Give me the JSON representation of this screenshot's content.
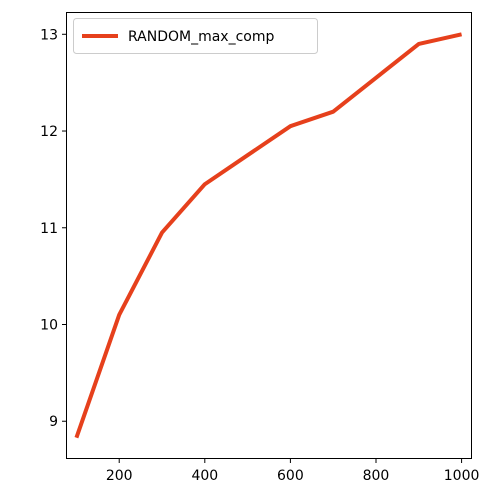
{
  "chart_data": {
    "type": "line",
    "title": "",
    "xlabel": "",
    "ylabel": "",
    "xlim": [
      78,
      1022
    ],
    "ylim": [
      8.62,
      13.22
    ],
    "x_ticks": [
      200,
      400,
      600,
      800,
      1000
    ],
    "y_ticks": [
      9,
      10,
      11,
      12,
      13
    ],
    "x_tick_labels": [
      "200",
      "400",
      "600",
      "800",
      "1000"
    ],
    "y_tick_labels": [
      "9",
      "10",
      "11",
      "12",
      "13"
    ],
    "grid": false,
    "legend_position": "top-left",
    "series": [
      {
        "name": "RANDOM_max_comp",
        "color": "#e6401c",
        "x": [
          100,
          200,
          300,
          400,
          500,
          600,
          700,
          800,
          900,
          1000
        ],
        "y": [
          8.83,
          10.1,
          10.95,
          11.45,
          11.75,
          12.05,
          12.2,
          12.55,
          12.9,
          13.0
        ]
      }
    ]
  }
}
